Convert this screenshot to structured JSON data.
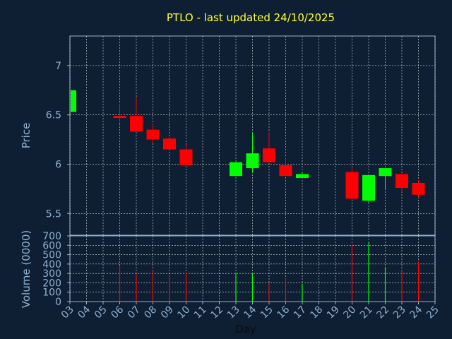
{
  "chart_data": {
    "type": "candlestick",
    "title": "PTLO - last updated 24/10/2025",
    "xlabel": "Day",
    "price_panel": {
      "ylabel": "Price",
      "ylim": [
        5.28,
        7.3
      ],
      "yticks": [
        5.5,
        6,
        6.5,
        7
      ],
      "ytick_labels": [
        "5.5",
        "6",
        "6.5",
        "7"
      ]
    },
    "volume_panel": {
      "ylabel": "Volume (0000)",
      "ylim": [
        0,
        700
      ],
      "yticks": [
        0,
        100,
        200,
        300,
        400,
        500,
        600,
        700
      ],
      "ytick_labels": [
        "0",
        "100",
        "200",
        "300",
        "400",
        "500",
        "600",
        "700"
      ]
    },
    "xlim": [
      3,
      25
    ],
    "xticks": [
      3,
      4,
      5,
      6,
      7,
      8,
      9,
      10,
      11,
      12,
      13,
      14,
      15,
      16,
      17,
      18,
      19,
      20,
      21,
      22,
      23,
      24,
      25
    ],
    "xtick_labels": [
      "03",
      "04",
      "05",
      "06",
      "07",
      "08",
      "09",
      "10",
      "11",
      "12",
      "13",
      "14",
      "15",
      "16",
      "17",
      "18",
      "19",
      "20",
      "21",
      "22",
      "23",
      "24",
      "25"
    ],
    "grid": true,
    "colors": {
      "background": "#0f1f33",
      "text": "#8fb0d0",
      "title": "#ffff33",
      "up": "#00ff00",
      "down": "#ff0000",
      "grid": "#ffffff"
    },
    "candles": [
      {
        "day": 3,
        "open": 6.53,
        "high": 6.75,
        "low": 6.53,
        "close": 6.75,
        "volume": 0
      },
      {
        "day": 6,
        "open": 6.49,
        "high": 6.61,
        "low": 6.41,
        "close": 6.47,
        "volume": 380
      },
      {
        "day": 7,
        "open": 6.49,
        "high": 6.68,
        "low": 6.33,
        "close": 6.33,
        "volume": 290
      },
      {
        "day": 8,
        "open": 6.35,
        "high": 6.41,
        "low": 6.21,
        "close": 6.25,
        "volume": 330
      },
      {
        "day": 9,
        "open": 6.26,
        "high": 6.26,
        "low": 6.15,
        "close": 6.15,
        "volume": 290
      },
      {
        "day": 10,
        "open": 6.15,
        "high": 6.2,
        "low": 5.99,
        "close": 5.99,
        "volume": 310
      },
      {
        "day": 13,
        "open": 5.88,
        "high": 6.02,
        "low": 5.88,
        "close": 6.02,
        "volume": 310
      },
      {
        "day": 14,
        "open": 5.96,
        "high": 6.32,
        "low": 5.92,
        "close": 6.11,
        "volume": 300
      },
      {
        "day": 15,
        "open": 6.16,
        "high": 6.33,
        "low": 6.02,
        "close": 6.02,
        "volume": 200
      },
      {
        "day": 16,
        "open": 5.99,
        "high": 6.07,
        "low": 5.88,
        "close": 5.88,
        "volume": 250
      },
      {
        "day": 17,
        "open": 5.86,
        "high": 5.92,
        "low": 5.86,
        "close": 5.9,
        "volume": 190
      },
      {
        "day": 20,
        "open": 5.92,
        "high": 5.96,
        "low": 5.64,
        "close": 5.65,
        "volume": 610
      },
      {
        "day": 21,
        "open": 5.63,
        "high": 5.89,
        "low": 5.61,
        "close": 5.89,
        "volume": 630
      },
      {
        "day": 22,
        "open": 5.88,
        "high": 5.96,
        "low": 5.74,
        "close": 5.96,
        "volume": 370
      },
      {
        "day": 23,
        "open": 5.9,
        "high": 5.9,
        "low": 5.72,
        "close": 5.76,
        "volume": 330
      },
      {
        "day": 24,
        "open": 5.81,
        "high": 5.84,
        "low": 5.66,
        "close": 5.69,
        "volume": 430
      }
    ]
  }
}
